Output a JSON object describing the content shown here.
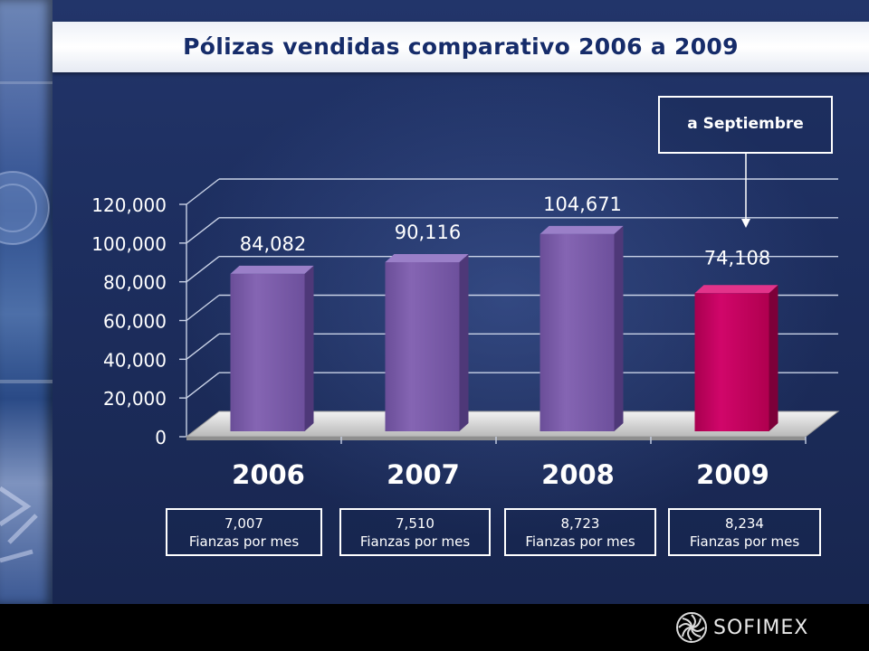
{
  "slide": {
    "title": "Pólizas vendidas comparativo 2006 a 2009",
    "annotation": "a Septiembre",
    "brand": "SOFIMEX"
  },
  "monthly": [
    {
      "value": "7,007",
      "label": "Fianzas por mes"
    },
    {
      "value": "7,510",
      "label": "Fianzas por mes"
    },
    {
      "value": "8,723",
      "label": "Fianzas por mes"
    },
    {
      "value": "8,234",
      "label": "Fianzas por mes"
    }
  ],
  "colors": {
    "bar_purple": "#7c5fa8",
    "bar_highlight": "#c4005f",
    "title_text": "#162c6a",
    "background": "#1d2e5f"
  },
  "chart_data": {
    "type": "bar",
    "title": "Pólizas vendidas comparativo 2006 a 2009",
    "categories": [
      "2006",
      "2007",
      "2008",
      "2009"
    ],
    "values": [
      84082,
      90116,
      104671,
      74108
    ],
    "value_labels": [
      "84,082",
      "90,116",
      "104,671",
      "74,108"
    ],
    "ylim": [
      0,
      120000
    ],
    "yticks": [
      0,
      20000,
      40000,
      60000,
      80000,
      100000,
      120000
    ],
    "ytick_labels": [
      "0",
      "20,000",
      "40,000",
      "60,000",
      "80,000",
      "100,000",
      "120,000"
    ],
    "grid": true,
    "legend": "none",
    "highlight_category": "2009",
    "xlabel": "",
    "ylabel": ""
  }
}
